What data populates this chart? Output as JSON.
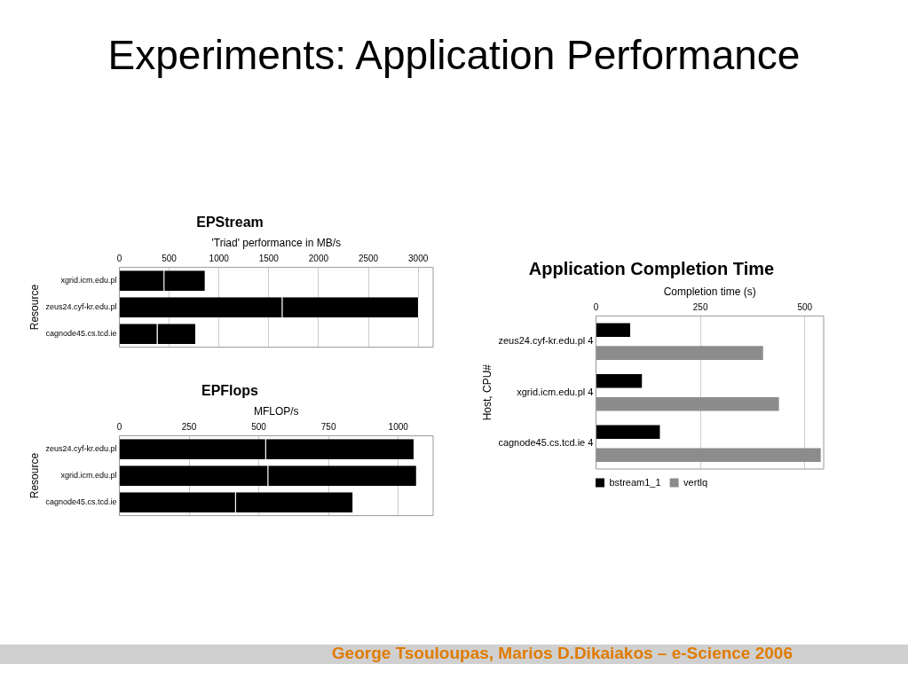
{
  "chart_data": [
    {
      "type": "bar",
      "title": "EPStream",
      "xlabel": "'Triad' performance in MB/s",
      "ylabel": "Resource",
      "orientation": "horizontal",
      "stacked": true,
      "categories": [
        "xgrid.icm.edu.pl",
        "zeus24.cyf-kr.edu.pl",
        "cagnode45.cs.tcd.ie"
      ],
      "series": [
        {
          "color": "#000000",
          "values": [
            452,
            1638,
            384
          ]
        },
        {
          "color": "#000000",
          "values": [
            414,
            1369,
            387
          ]
        }
      ],
      "xlim": [
        0,
        3150
      ],
      "xticks": [
        0,
        500,
        1000,
        1500,
        2000,
        2500,
        3000
      ],
      "grid": "x",
      "legend": false,
      "annotations": [
        "Experiments: Application Performance",
        "George Tsouloupas, Marios D.Dikaiakos – e-Science 2006"
      ]
    },
    {
      "type": "bar",
      "title": "EPFlops",
      "xlabel": "MFLOP/s",
      "ylabel": "Resource",
      "orientation": "horizontal",
      "stacked": true,
      "categories": [
        "zeus24.cyf-kr.edu.pl",
        "xgrid.icm.edu.pl",
        "cagnode45.cs.tcd.ie"
      ],
      "series": [
        {
          "color": "#000000",
          "values": [
            526,
            534,
            418
          ]
        },
        {
          "color": "#000000",
          "values": [
            532,
            533,
            421
          ]
        }
      ],
      "xlim": [
        0,
        1125
      ],
      "xticks": [
        0,
        250,
        500,
        750,
        1000
      ],
      "grid": "x",
      "legend": false
    },
    {
      "type": "bar",
      "title": "Application Completion Time",
      "xlabel": "Completion time (s)",
      "ylabel": "Host, CPU#",
      "orientation": "horizontal",
      "categories": [
        "zeus24.cyf-kr.edu.pl 4",
        "xgrid.icm.edu.pl 4",
        "cagnode45.cs.tcd.ie 4"
      ],
      "series": [
        {
          "name": "bstream1_1",
          "color": "#000000",
          "values": [
            82,
            110,
            153
          ]
        },
        {
          "name": "vertlq",
          "color": "#8c8c8c",
          "values": [
            400,
            438,
            538
          ]
        }
      ],
      "xlim": [
        0,
        545
      ],
      "xticks": [
        0,
        250,
        500
      ],
      "grid": "x",
      "legend": "bottom"
    }
  ]
}
